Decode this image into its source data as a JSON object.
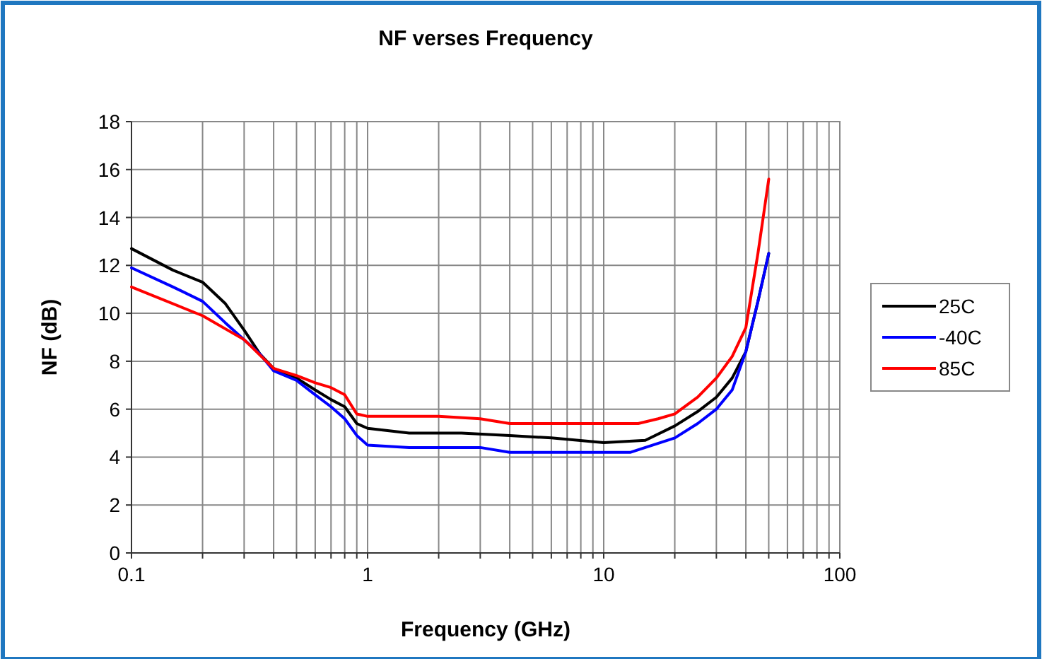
{
  "chart_data": {
    "type": "line",
    "title": "NF verses Frequency",
    "xlabel": "Frequency (GHz)",
    "ylabel": "NF (dB)",
    "log": "x",
    "grid": true,
    "legend": "right",
    "line_style": "solid",
    "marker": "none",
    "xlim": [
      0.1,
      100
    ],
    "ylim": [
      0,
      18
    ],
    "yticks": [
      0,
      2,
      4,
      6,
      8,
      10,
      12,
      14,
      16,
      18
    ],
    "xticks": [
      0.1,
      {
        "value": 0.2,
        "label": null
      },
      {
        "value": 0.3,
        "label": null
      },
      {
        "value": 0.4,
        "label": null
      },
      {
        "value": 0.5,
        "label": null
      },
      {
        "value": 0.6,
        "label": null
      },
      {
        "value": 0.7,
        "label": null
      },
      {
        "value": 0.8,
        "label": null
      },
      {
        "value": 0.9,
        "label": null
      },
      1,
      {
        "value": 2,
        "label": null
      },
      {
        "value": 3,
        "label": null
      },
      {
        "value": 4,
        "label": null
      },
      {
        "value": 5,
        "label": null
      },
      {
        "value": 6,
        "label": null
      },
      {
        "value": 7,
        "label": null
      },
      {
        "value": 8,
        "label": null
      },
      {
        "value": 9,
        "label": null
      },
      10,
      {
        "value": 20,
        "label": null
      },
      {
        "value": 30,
        "label": null
      },
      {
        "value": 40,
        "label": null
      },
      {
        "value": 50,
        "label": null
      },
      {
        "value": 60,
        "label": null
      },
      {
        "value": 70,
        "label": null
      },
      {
        "value": 80,
        "label": null
      },
      {
        "value": 90,
        "label": null
      },
      100
    ],
    "series": [
      {
        "name": "25C",
        "color": "#000000",
        "x": [
          0.1,
          0.15,
          0.2,
          0.25,
          0.3,
          0.35,
          0.4,
          0.5,
          0.6,
          0.7,
          0.8,
          0.9,
          1,
          1.5,
          2.5,
          4,
          6,
          10,
          15,
          20,
          25,
          30,
          35,
          40,
          45,
          50
        ],
        "values": [
          12.7,
          11.8,
          11.3,
          10.4,
          9.3,
          8.3,
          7.7,
          7.3,
          6.8,
          6.4,
          6.1,
          5.4,
          5.2,
          5.0,
          5.0,
          4.9,
          4.8,
          4.6,
          4.7,
          5.3,
          5.9,
          6.5,
          7.3,
          8.4,
          10.5,
          12.5
        ]
      },
      {
        "name": "-40C",
        "color": "#0000ff",
        "x": [
          0.1,
          0.15,
          0.2,
          0.25,
          0.3,
          0.35,
          0.4,
          0.5,
          0.6,
          0.7,
          0.8,
          0.9,
          1,
          1.5,
          3,
          4,
          10,
          13,
          15,
          20,
          25,
          30,
          35,
          40,
          45,
          50
        ],
        "values": [
          11.9,
          11.1,
          10.5,
          9.6,
          8.9,
          8.3,
          7.6,
          7.2,
          6.6,
          6.1,
          5.6,
          4.9,
          4.5,
          4.4,
          4.4,
          4.2,
          4.2,
          4.2,
          4.4,
          4.8,
          5.4,
          6.0,
          6.8,
          8.4,
          10.5,
          12.5
        ]
      },
      {
        "name": "85C",
        "color": "#ff0000",
        "x": [
          0.1,
          0.2,
          0.3,
          0.4,
          0.5,
          0.6,
          0.7,
          0.8,
          0.9,
          1,
          2,
          3,
          4,
          10,
          14,
          17,
          20,
          25,
          30,
          35,
          40,
          45,
          50
        ],
        "values": [
          11.1,
          9.9,
          8.9,
          7.7,
          7.4,
          7.1,
          6.9,
          6.6,
          5.8,
          5.7,
          5.7,
          5.6,
          5.4,
          5.4,
          5.4,
          5.6,
          5.8,
          6.5,
          7.3,
          8.2,
          9.4,
          12.5,
          15.6
        ]
      }
    ]
  }
}
